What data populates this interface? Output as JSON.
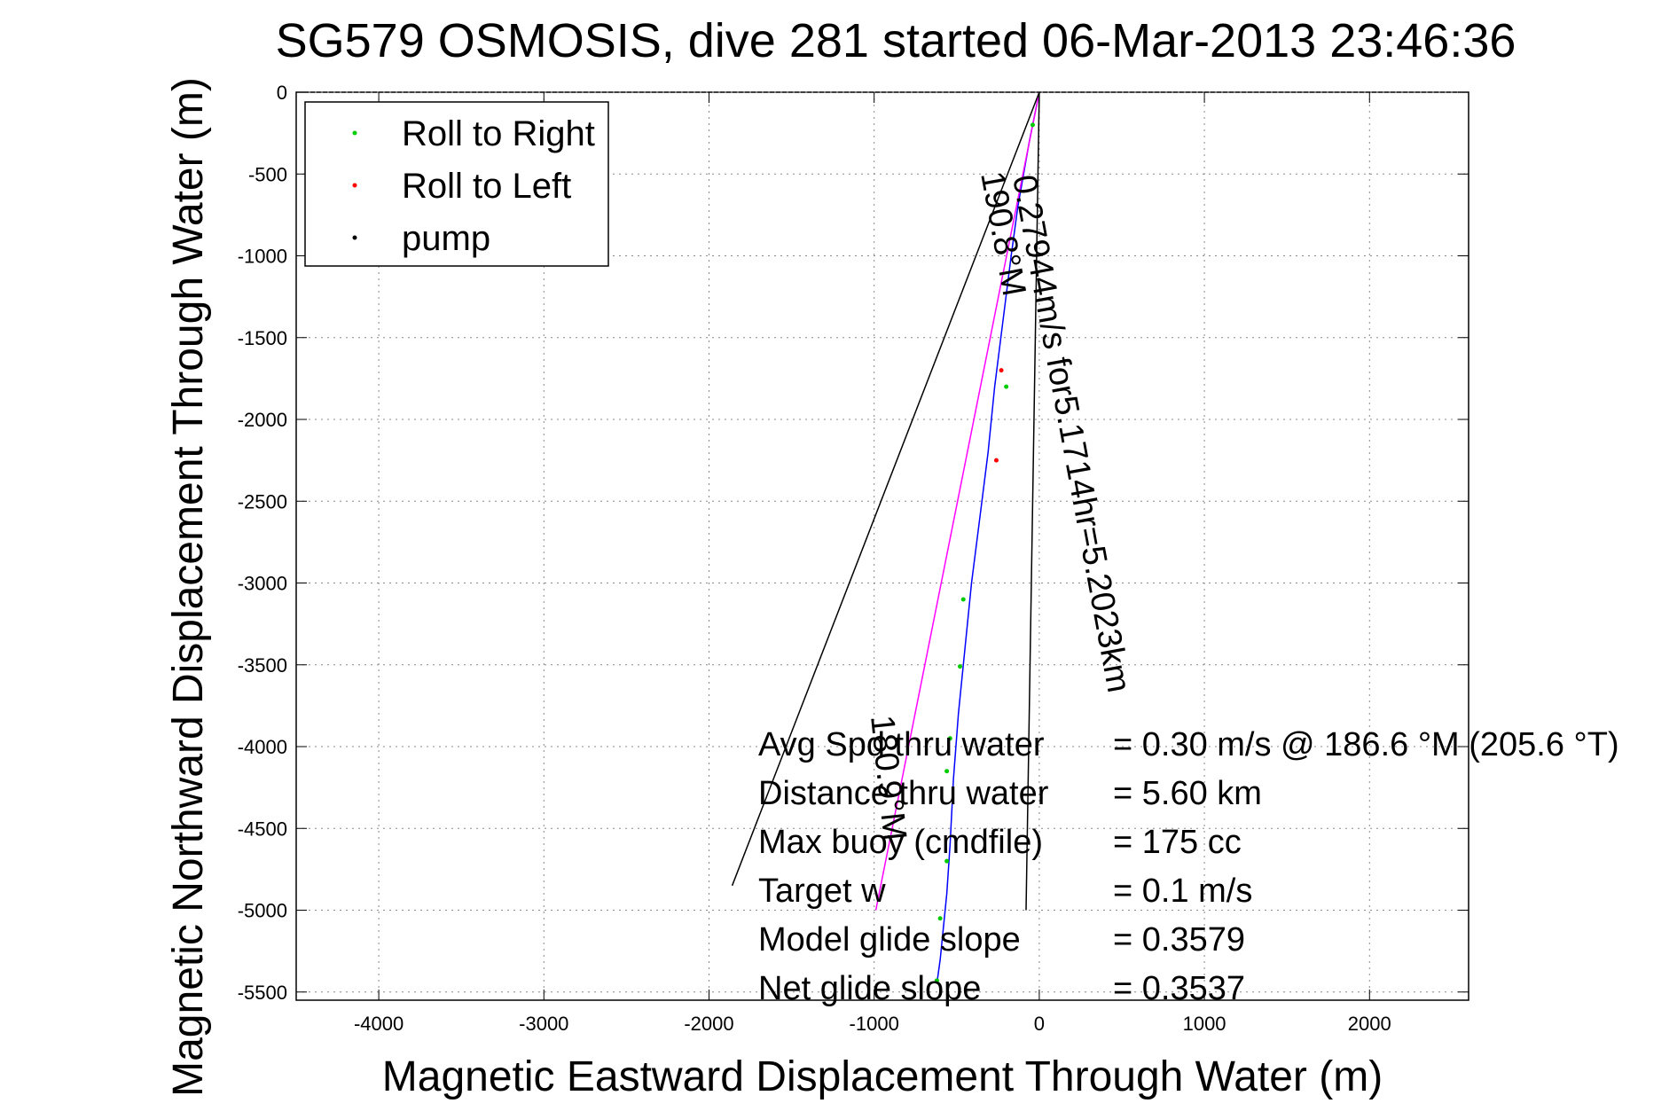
{
  "chart_data": {
    "type": "line",
    "title": "SG579 OSMOSIS, dive 281 started 06-Mar-2013 23:46:36",
    "xlabel": "Magnetic Eastward Displacement Through Water (m)",
    "ylabel": "Magnetic Northward Displacement Through Water (m)",
    "xlim": [
      -4500,
      2600
    ],
    "ylim": [
      -5550,
      0
    ],
    "xticks": [
      -4000,
      -3000,
      -2000,
      -1000,
      0,
      1000,
      2000
    ],
    "yticks": [
      0,
      -500,
      -1000,
      -1500,
      -2000,
      -2500,
      -3000,
      -3500,
      -4000,
      -4500,
      -5000,
      -5500
    ],
    "xtick_labels": [
      "-4000",
      "-3000",
      "-2000",
      "-1000",
      "0",
      "1000",
      "2000"
    ],
    "ytick_labels": [
      "0",
      "-500",
      "-1000",
      "-1500",
      "-2000",
      "-2500",
      "-3000",
      "-3500",
      "-4000",
      "-4500",
      "-5000",
      "-5500"
    ],
    "grid": true,
    "legend": {
      "position": "top-left",
      "entries": [
        {
          "label": "Roll to Right",
          "color": "#00cc00"
        },
        {
          "label": "Roll to Left",
          "color": "#ff0000"
        },
        {
          "label": "pump",
          "color": "#000000"
        }
      ]
    },
    "series": [
      {
        "color": "#0000ff",
        "x": [
          0,
          -60,
          -130,
          -170,
          -220,
          -270,
          -310,
          -360,
          -410,
          -450,
          -490,
          -520,
          -540,
          -560,
          -580,
          -600,
          -620
        ],
        "y": [
          0,
          -300,
          -700,
          -1000,
          -1400,
          -1800,
          -2200,
          -2600,
          -3000,
          -3400,
          -3800,
          -4200,
          -4600,
          -4900,
          -5100,
          -5300,
          -5450
        ]
      },
      {
        "color": "#ff00ff",
        "x": [
          0,
          -990
        ],
        "y": [
          0,
          -5000
        ]
      },
      {
        "color": "#000000",
        "x": [
          0,
          -1860
        ],
        "y": [
          0,
          -4850
        ]
      },
      {
        "color": "#000000",
        "x": [
          0,
          -80
        ],
        "y": [
          0,
          -5000
        ]
      }
    ],
    "roll_right_points": {
      "x": [
        -40,
        -200,
        -460,
        -480,
        -540,
        -560,
        -560,
        -600,
        -620
      ],
      "y": [
        -200,
        -1800,
        -3100,
        -3510,
        -3950,
        -4150,
        -4700,
        -5050,
        -5430
      ]
    },
    "roll_left_points": {
      "x": [
        -230,
        -260
      ],
      "y": [
        -1700,
        -2250
      ]
    },
    "annotations": {
      "rotated_current": "0.27944m/s for5.1714hr=5.2023km",
      "heading_current": "190.8°M",
      "heading_track": "180.9°M",
      "stats": [
        {
          "label": "Avg Spd thru water",
          "value": "=  0.30 m/s @ 186.6 °M (205.6 °T)"
        },
        {
          "label": "Distance thru water",
          "value": "=  5.60 km"
        },
        {
          "label": "Max buoy (cmdfile)",
          "value": "= 175 cc"
        },
        {
          "label": "Target w",
          "value": "= 0.1 m/s"
        },
        {
          "label": "Model glide slope",
          "value": "= 0.3579"
        },
        {
          "label": "Net glide slope",
          "value": "= 0.3537"
        }
      ]
    }
  }
}
